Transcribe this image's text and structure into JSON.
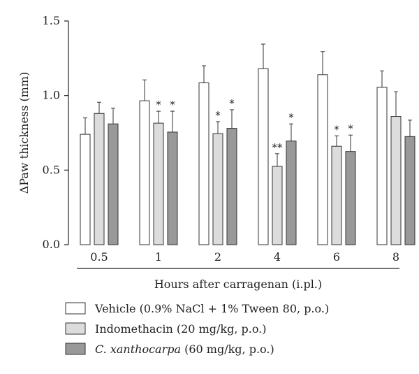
{
  "chart_data": {
    "type": "bar",
    "xlabel": "Hours after carragenan (i.pl.)",
    "ylabel": "ΔPaw thickness (mm)",
    "categories": [
      "0.5",
      "1",
      "2",
      "4",
      "6",
      "8"
    ],
    "ylim": [
      0.0,
      1.5
    ],
    "yticks": [
      "0.0",
      "0.5",
      "1.0",
      "1.5"
    ],
    "ytick_values": [
      0.0,
      0.5,
      1.0,
      1.5
    ],
    "series": [
      {
        "name": "Vehicle (0.9% NaCl + 1% Tween 80, p.o.)",
        "color": "#ffffff",
        "values": [
          0.74,
          0.965,
          1.085,
          1.18,
          1.14,
          1.055
        ],
        "errors": [
          0.11,
          0.14,
          0.115,
          0.165,
          0.155,
          0.11
        ],
        "stars": [
          "",
          "",
          "",
          "",
          "",
          ""
        ]
      },
      {
        "name": "Indomethacin (20 mg/kg, p.o.)",
        "color": "#dcdcdc",
        "values": [
          0.88,
          0.815,
          0.745,
          0.525,
          0.66,
          0.86
        ],
        "errors": [
          0.075,
          0.08,
          0.08,
          0.085,
          0.07,
          0.165
        ],
        "stars": [
          "",
          "*",
          "*",
          "**",
          "*",
          ""
        ]
      },
      {
        "name": "C. xanthocarpa (60 mg/kg, p.o.)",
        "name_italic": "C. xanthocarpa",
        "name_rest": " (60 mg/kg, p.o.)",
        "color": "#999999",
        "values": [
          0.81,
          0.755,
          0.78,
          0.695,
          0.625,
          0.725
        ],
        "errors": [
          0.105,
          0.14,
          0.125,
          0.115,
          0.11,
          0.11
        ],
        "stars": [
          "",
          "*",
          "*",
          "*",
          "*",
          ""
        ]
      }
    ],
    "legend_position": "bottom",
    "grid": false
  }
}
